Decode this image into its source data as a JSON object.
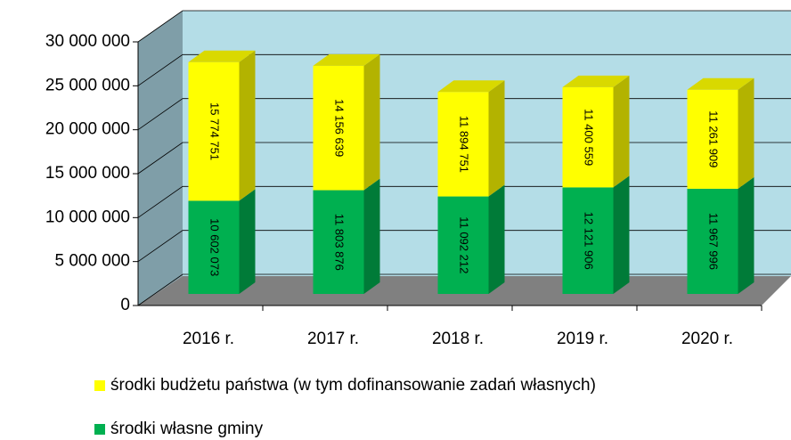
{
  "chart_data": {
    "type": "bar3d_stacked",
    "categories": [
      "2016 r.",
      "2017 r.",
      "2018 r.",
      "2019 r.",
      "2020 r."
    ],
    "series": [
      {
        "name": "środki własne gminy",
        "color": "#00b050",
        "values": [
          10602073,
          11803876,
          11092212,
          12121906,
          11967996
        ],
        "value_labels": [
          "10 602 073",
          "11 803 876",
          "11 092 212",
          "12 121 906",
          "11 967 996"
        ]
      },
      {
        "name": "środki budżetu państwa (w tym dofinansowanie zadań  własnych)",
        "color": "#ffff00",
        "values": [
          15774751,
          14156639,
          11894751,
          11400559,
          11261909
        ],
        "value_labels": [
          "15 774 751",
          "14 156 639",
          "11 894 751",
          "11 400 559",
          "11 261 909"
        ]
      }
    ],
    "ylim": [
      0,
      30000000
    ],
    "yticks": [
      0,
      {
        "value": 5000000,
        "label": "5 000 000"
      },
      {
        "value": 10000000,
        "label": "10 000 000"
      },
      {
        "value": 15000000,
        "label": "15 000 000"
      },
      {
        "value": 20000000,
        "label": "20 000 000"
      },
      {
        "value": 25000000,
        "label": "25 000 000"
      },
      {
        "value": 30000000,
        "label": "30 000 000"
      }
    ],
    "grid": true
  }
}
